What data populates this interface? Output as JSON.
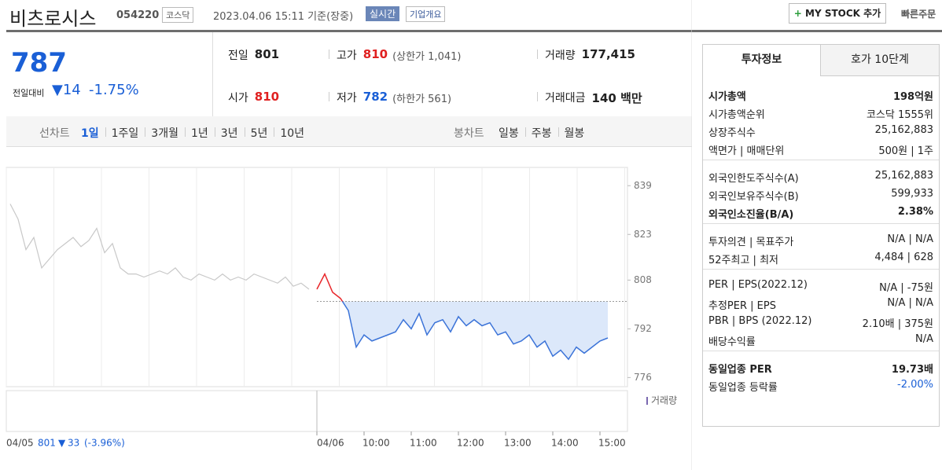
{
  "header": {
    "name": "비츠로시스",
    "code": "054220",
    "market": "코스닥",
    "timestamp": "2023.04.06 15:11 기준(장중)",
    "realtime": "실시간",
    "overview": "기업개요",
    "mystock": "MY STOCK 추가",
    "quick_order": "빠른주문"
  },
  "price": {
    "current": "787",
    "change_label": "전일대비",
    "change": "14",
    "change_rate": "-1.75%"
  },
  "quote": [
    {
      "label": "전일",
      "value": "801"
    },
    {
      "label": "고가",
      "value": "810",
      "note": "(상한가 1,041)"
    },
    {
      "label": "거래량",
      "value": "177,415"
    },
    {
      "label": "시가",
      "value": "810"
    },
    {
      "label": "저가",
      "value": "782",
      "note": "(하한가 561)"
    },
    {
      "label": "거래대금",
      "value": "140 백만"
    }
  ],
  "periods": {
    "line_label": "선차트",
    "line": [
      "1일",
      "1주일",
      "3개월",
      "1년",
      "3년",
      "5년",
      "10년"
    ],
    "candle_label": "봉차트",
    "candle": [
      "일봉",
      "주봉",
      "월봉"
    ]
  },
  "chart_data": {
    "type": "line",
    "ylim": [
      773,
      845
    ],
    "yticks": [
      776,
      792,
      808,
      823,
      839
    ],
    "prev_close": 801,
    "prev_change": 33,
    "prev_change_rate": "(-3.96%)",
    "up_color": "#e8262a",
    "fill_color": "#dce8fa",
    "hours": [
      "10:00",
      "11:00",
      "12:00",
      "13:00",
      "14:00",
      "15:00"
    ],
    "volume_label": "거래량",
    "series": [
      {
        "name": "04/05",
        "color": "#c8c8c8",
        "values": [
          833,
          828,
          818,
          822,
          812,
          815,
          818,
          820,
          822,
          819,
          821,
          825,
          817,
          820,
          812,
          810,
          810,
          809,
          810,
          811,
          810,
          812,
          809,
          808,
          810,
          809,
          808,
          810,
          808,
          809,
          808,
          810,
          809,
          808,
          807,
          809,
          806,
          807,
          805
        ]
      },
      {
        "name": "04/06",
        "color": "#3b73d8",
        "values": [
          805,
          810,
          804,
          802,
          798,
          786,
          790,
          788,
          789,
          790,
          791,
          795,
          792,
          797,
          790,
          794,
          795,
          791,
          796,
          793,
          795,
          793,
          794,
          790,
          791,
          787,
          788,
          790,
          786,
          788,
          783,
          785,
          782,
          786,
          784,
          786,
          788,
          789
        ]
      }
    ]
  },
  "info": {
    "tabs": [
      "투자정보",
      "호가 10단계"
    ],
    "groups": [
      [
        {
          "label": "시가총액",
          "value": "198억원"
        },
        {
          "label": "시가총액순위",
          "value": "코스닥 1555위"
        },
        {
          "label": "상장주식수",
          "value": "25,162,883"
        },
        {
          "label": "액면가 | 매매단위",
          "value": "500원 | 1주"
        }
      ],
      [
        {
          "label": "외국인한도주식수(A)",
          "value": "25,162,883"
        },
        {
          "label": "외국인보유주식수(B)",
          "value": "599,933"
        },
        {
          "label": "외국인소진율(B/A)",
          "value": "2.38%"
        }
      ],
      [
        {
          "label": "투자의견 | 목표주가",
          "value": "N/A | N/A"
        },
        {
          "label": "52주최고 | 최저",
          "value": "4,484 | 628"
        }
      ],
      [
        {
          "label": "PER | EPS(2022.12)",
          "value": "N/A | -75원"
        },
        {
          "label": "추정PER | EPS",
          "value": "N/A | N/A"
        },
        {
          "label": "PBR | BPS (2022.12)",
          "value": "2.10배 | 375원"
        },
        {
          "label": "배당수익률",
          "value": "N/A"
        }
      ],
      [
        {
          "label": "동일업종 PER",
          "value": "19.73배"
        },
        {
          "label": "동일업종 등락률",
          "value": "-2.00%"
        }
      ]
    ]
  }
}
